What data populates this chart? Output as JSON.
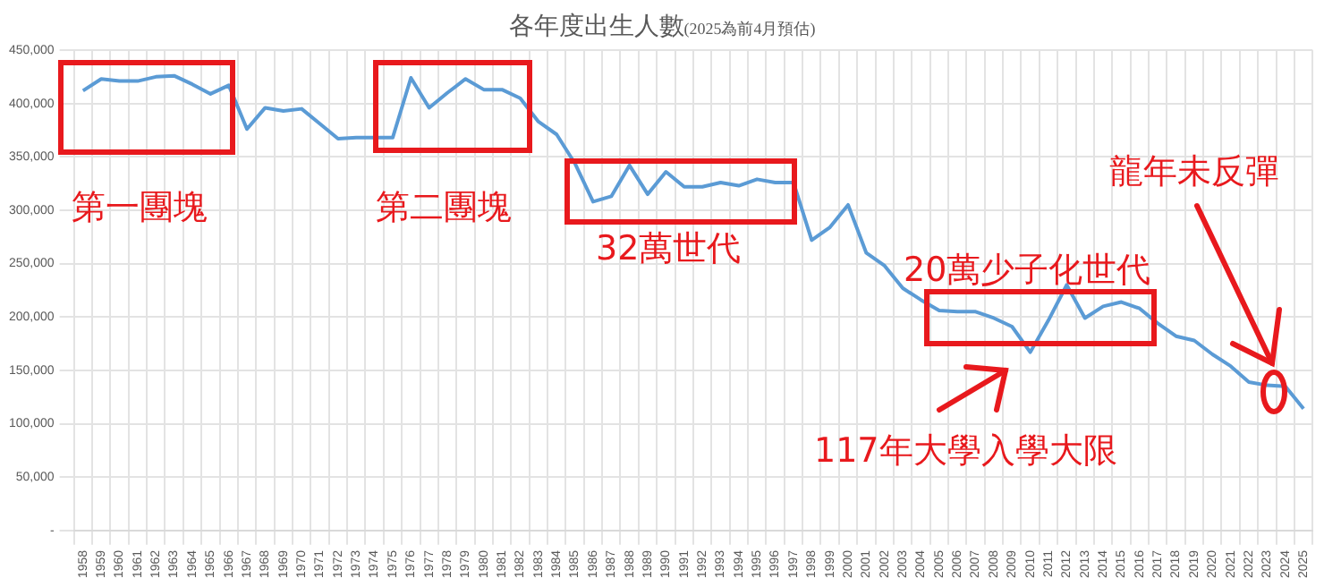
{
  "chart_data": {
    "type": "line",
    "title": "各年度出生人數",
    "subtitle": "(2025為前4月預估)",
    "categories": [
      "1958",
      "1959",
      "1960",
      "1961",
      "1962",
      "1963",
      "1964",
      "1965",
      "1966",
      "1967",
      "1968",
      "1969",
      "1970",
      "1971",
      "1972",
      "1973",
      "1974",
      "1975",
      "1976",
      "1977",
      "1978",
      "1979",
      "1980",
      "1981",
      "1982",
      "1983",
      "1984",
      "1985",
      "1986",
      "1987",
      "1988",
      "1989",
      "1990",
      "1991",
      "1992",
      "1993",
      "1994",
      "1995",
      "1996",
      "1997",
      "1998",
      "1999",
      "2000",
      "2001",
      "2002",
      "2003",
      "2004",
      "2005",
      "2006",
      "2007",
      "2008",
      "2009",
      "2010",
      "2011",
      "2012",
      "2013",
      "2014",
      "2015",
      "2016",
      "2017",
      "2018",
      "2019",
      "2020",
      "2021",
      "2022",
      "2023",
      "2024",
      "2025"
    ],
    "series": [
      {
        "color": "#5b9bd5",
        "values": [
          412000,
          423000,
          421000,
          421000,
          425000,
          426000,
          418000,
          409000,
          417000,
          376000,
          396000,
          393000,
          395000,
          381000,
          367000,
          368000,
          368000,
          368000,
          424000,
          396000,
          410000,
          423000,
          413000,
          413000,
          405000,
          383000,
          371000,
          344000,
          308000,
          313000,
          342000,
          315000,
          336000,
          322000,
          322000,
          326000,
          323000,
          329000,
          326000,
          326000,
          272000,
          284000,
          305000,
          260000,
          248000,
          227000,
          216000,
          206000,
          205000,
          205000,
          199000,
          191000,
          167000,
          197000,
          230000,
          199000,
          210000,
          214000,
          208000,
          194000,
          182000,
          178000,
          165000,
          154000,
          139000,
          136000,
          135000,
          114000
        ]
      }
    ],
    "ylim": [
      0,
      450000
    ],
    "yticks": [
      {
        "value": 0,
        "label": "-"
      },
      {
        "value": 50000,
        "label": "50,000"
      },
      {
        "value": 100000,
        "label": "100,000"
      },
      {
        "value": 150000,
        "label": "150,000"
      },
      {
        "value": 200000,
        "label": "200,000"
      },
      {
        "value": 250000,
        "label": "250,000"
      },
      {
        "value": 300000,
        "label": "300,000"
      },
      {
        "value": 350000,
        "label": "350,000"
      },
      {
        "value": 400000,
        "label": "400,000"
      },
      {
        "value": 450000,
        "label": "450,000"
      }
    ],
    "grid": true,
    "legend": false,
    "marker": "none",
    "line_style": "solid",
    "annotations": [
      "第一團塊",
      "第二團塊",
      "32萬世代",
      "20萬少子化世代",
      "117年大學入學大限",
      "龍年未反彈"
    ]
  }
}
